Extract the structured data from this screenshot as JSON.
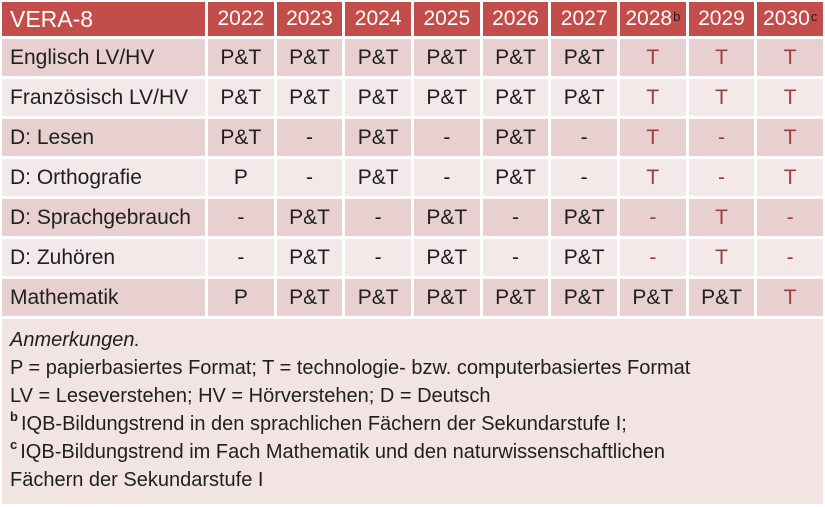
{
  "colors": {
    "header_bg": "#c24d4a",
    "header_text": "#ffffff",
    "band_dark": "#e7d0cf",
    "band_light": "#f3e9e8",
    "notes_bg": "#f2e4e2",
    "red_text": "#9e3d3a",
    "body_text": "#1f1f1f"
  },
  "table": {
    "title": "VERA-8",
    "years": [
      {
        "label": "2022",
        "sup": ""
      },
      {
        "label": "2023",
        "sup": ""
      },
      {
        "label": "2024",
        "sup": ""
      },
      {
        "label": "2025",
        "sup": ""
      },
      {
        "label": "2026",
        "sup": ""
      },
      {
        "label": "2027",
        "sup": ""
      },
      {
        "label": "2028",
        "sup": "b"
      },
      {
        "label": "2029",
        "sup": ""
      },
      {
        "label": "2030",
        "sup": "c"
      }
    ],
    "rows": [
      {
        "label": "Englisch LV/HV",
        "values": [
          "P&T",
          "P&T",
          "P&T",
          "P&T",
          "P&T",
          "P&T",
          "T",
          "T",
          "T"
        ],
        "red": [
          false,
          false,
          false,
          false,
          false,
          false,
          true,
          true,
          true
        ]
      },
      {
        "label": "Französisch LV/HV",
        "values": [
          "P&T",
          "P&T",
          "P&T",
          "P&T",
          "P&T",
          "P&T",
          "T",
          "T",
          "T"
        ],
        "red": [
          false,
          false,
          false,
          false,
          false,
          false,
          true,
          true,
          true
        ]
      },
      {
        "label": "D: Lesen",
        "values": [
          "P&T",
          "-",
          "P&T",
          "-",
          "P&T",
          "-",
          "T",
          "-",
          "T"
        ],
        "red": [
          false,
          false,
          false,
          false,
          false,
          false,
          true,
          true,
          true
        ]
      },
      {
        "label": "D: Orthografie",
        "values": [
          "P",
          "-",
          "P&T",
          "-",
          "P&T",
          "-",
          "T",
          "-",
          "T"
        ],
        "red": [
          false,
          false,
          false,
          false,
          false,
          false,
          true,
          true,
          true
        ]
      },
      {
        "label": "D: Sprachgebrauch",
        "values": [
          "-",
          "P&T",
          "-",
          "P&T",
          "-",
          "P&T",
          "-",
          "T",
          "-"
        ],
        "red": [
          false,
          false,
          false,
          false,
          false,
          false,
          true,
          true,
          true
        ]
      },
      {
        "label": "D: Zuhören",
        "values": [
          "-",
          "P&T",
          "-",
          "P&T",
          "-",
          "P&T",
          "-",
          "T",
          "-"
        ],
        "red": [
          false,
          false,
          false,
          false,
          false,
          false,
          true,
          true,
          true
        ]
      },
      {
        "label": "Mathematik",
        "values": [
          "P",
          "P&T",
          "P&T",
          "P&T",
          "P&T",
          "P&T",
          "P&T",
          "P&T",
          "T"
        ],
        "red": [
          false,
          false,
          false,
          false,
          false,
          false,
          false,
          false,
          true
        ]
      }
    ]
  },
  "notes": {
    "lines": [
      {
        "sup": "",
        "italic": true,
        "text": "Anmerkungen."
      },
      {
        "sup": "",
        "italic": false,
        "text": "P = papierbasiertes Format; T = technologie- bzw. computerbasiertes Format"
      },
      {
        "sup": "",
        "italic": false,
        "text": "LV = Leseverstehen; HV = Hörverstehen; D = Deutsch"
      },
      {
        "sup": "b",
        "italic": false,
        "text": "IQB-Bildungstrend in den sprachlichen Fächern der Sekundarstufe I;"
      },
      {
        "sup": "c",
        "italic": false,
        "text": "IQB-Bildungstrend im Fach Mathematik und den naturwissenschaftlichen"
      },
      {
        "sup": "",
        "italic": false,
        "text": "Fächern der Sekundarstufe I"
      }
    ]
  }
}
